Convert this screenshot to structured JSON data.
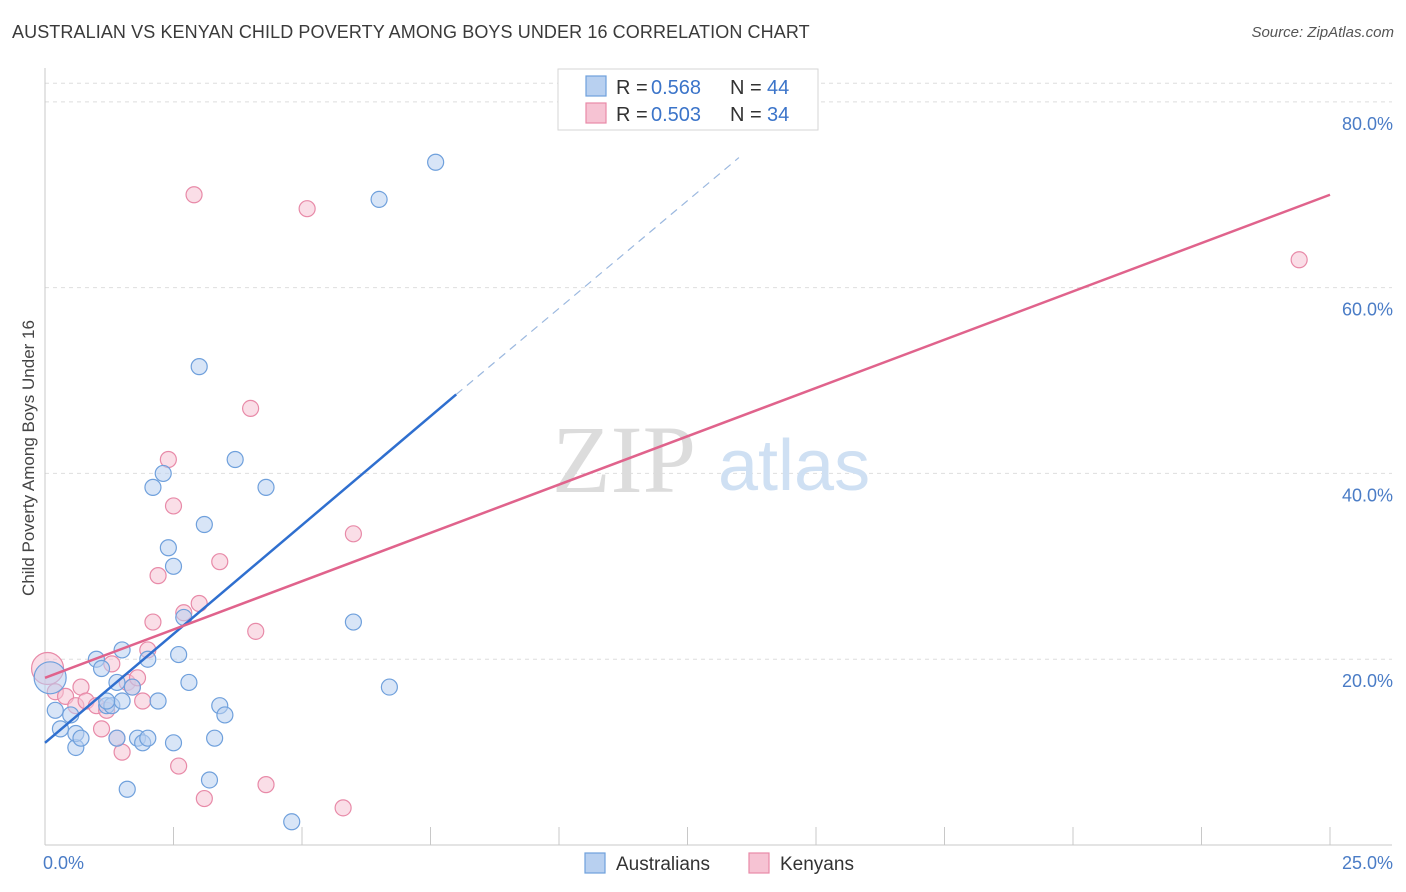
{
  "chart_data": {
    "type": "scatter",
    "title": "AUSTRALIAN VS KENYAN CHILD POVERTY AMONG BOYS UNDER 16 CORRELATION CHART",
    "source": "Source: ZipAtlas.com",
    "xlabel": "",
    "ylabel": "Child Poverty Among Boys Under 16",
    "xlim": [
      0,
      25
    ],
    "ylim": [
      0,
      83
    ],
    "x_tick_labels": [
      "0.0%",
      "25.0%"
    ],
    "y_ticks": [
      20,
      40,
      60,
      80
    ],
    "y_tick_labels": [
      "20.0%",
      "40.0%",
      "60.0%",
      "80.0%"
    ],
    "watermark": {
      "zip": "ZIP",
      "atlas": "atlas"
    },
    "legend": {
      "r_label": "R =",
      "n_label": "N =",
      "entries": [
        {
          "r": "0.568",
          "n": "44"
        },
        {
          "r": "0.503",
          "n": "34"
        }
      ]
    },
    "series": [
      {
        "name": "Australians",
        "color": "#6fa0dc",
        "fill": "#b8d0f0",
        "trend": {
          "x": [
            0.0,
            8.0
          ],
          "y": [
            11.0,
            48.5
          ],
          "color": "#2f6fcf",
          "dash_to": [
            13.5,
            74.0
          ]
        },
        "points": [
          [
            0.1,
            18.0
          ],
          [
            0.2,
            14.5
          ],
          [
            0.3,
            12.5
          ],
          [
            0.5,
            14.0
          ],
          [
            0.6,
            10.5
          ],
          [
            0.6,
            12.0
          ],
          [
            0.7,
            11.5
          ],
          [
            1.0,
            20.0
          ],
          [
            1.1,
            19.0
          ],
          [
            1.2,
            15.0
          ],
          [
            1.3,
            15.0
          ],
          [
            1.4,
            11.5
          ],
          [
            1.4,
            17.5
          ],
          [
            1.5,
            21.0
          ],
          [
            1.5,
            15.5
          ],
          [
            1.6,
            6.0
          ],
          [
            1.7,
            17.0
          ],
          [
            1.8,
            11.5
          ],
          [
            1.9,
            11.0
          ],
          [
            2.0,
            20.0
          ],
          [
            2.1,
            38.5
          ],
          [
            2.2,
            15.5
          ],
          [
            2.3,
            40.0
          ],
          [
            2.4,
            32.0
          ],
          [
            2.5,
            11.0
          ],
          [
            2.5,
            30.0
          ],
          [
            2.6,
            20.5
          ],
          [
            2.7,
            24.5
          ],
          [
            2.8,
            17.5
          ],
          [
            3.0,
            51.5
          ],
          [
            3.1,
            34.5
          ],
          [
            3.2,
            7.0
          ],
          [
            3.3,
            11.5
          ],
          [
            3.4,
            15.0
          ],
          [
            3.5,
            14.0
          ],
          [
            3.7,
            41.5
          ],
          [
            4.3,
            38.5
          ],
          [
            4.8,
            2.5
          ],
          [
            6.0,
            24.0
          ],
          [
            6.5,
            69.5
          ],
          [
            6.7,
            17.0
          ],
          [
            7.6,
            73.5
          ],
          [
            1.2,
            15.5
          ],
          [
            2.0,
            11.5
          ]
        ]
      },
      {
        "name": "Kenyans",
        "color": "#e88aa8",
        "fill": "#f6c3d3",
        "trend": {
          "x": [
            0.0,
            25.0
          ],
          "y": [
            18.0,
            70.0
          ],
          "color": "#e0638c"
        },
        "points": [
          [
            0.05,
            19.0
          ],
          [
            0.2,
            16.5
          ],
          [
            0.4,
            16.0
          ],
          [
            0.6,
            15.0
          ],
          [
            0.7,
            17.0
          ],
          [
            0.8,
            15.5
          ],
          [
            1.0,
            15.0
          ],
          [
            1.1,
            12.5
          ],
          [
            1.2,
            14.5
          ],
          [
            1.3,
            19.5
          ],
          [
            1.4,
            11.5
          ],
          [
            1.5,
            10.0
          ],
          [
            1.6,
            17.5
          ],
          [
            1.7,
            17.0
          ],
          [
            1.8,
            18.0
          ],
          [
            1.9,
            15.5
          ],
          [
            2.0,
            21.0
          ],
          [
            2.1,
            24.0
          ],
          [
            2.2,
            29.0
          ],
          [
            2.4,
            41.5
          ],
          [
            2.5,
            36.5
          ],
          [
            2.6,
            8.5
          ],
          [
            2.7,
            25.0
          ],
          [
            2.9,
            70.0
          ],
          [
            3.0,
            26.0
          ],
          [
            3.1,
            5.0
          ],
          [
            3.4,
            30.5
          ],
          [
            4.0,
            47.0
          ],
          [
            4.1,
            23.0
          ],
          [
            4.3,
            6.5
          ],
          [
            5.1,
            68.5
          ],
          [
            5.8,
            4.0
          ],
          [
            6.0,
            33.5
          ],
          [
            24.4,
            63.0
          ]
        ]
      }
    ]
  }
}
